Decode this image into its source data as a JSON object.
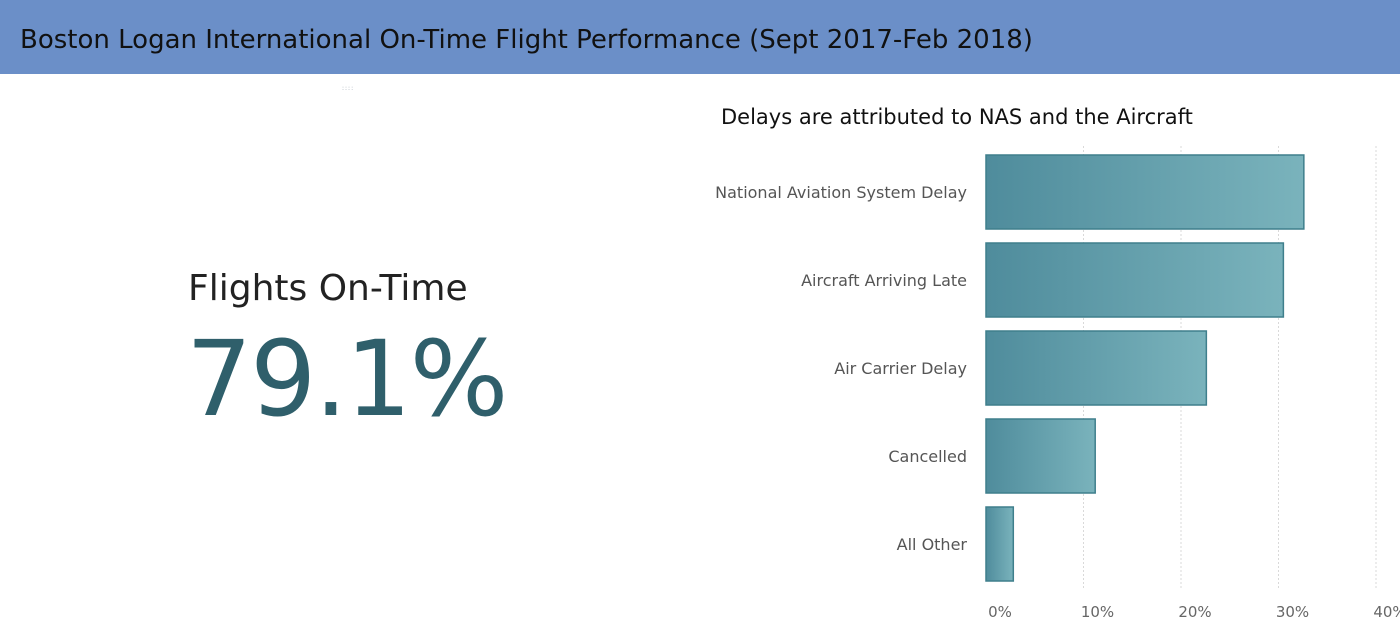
{
  "header": {
    "title": "Boston Logan International On-Time Flight Performance (Sept 2017-Feb 2018)"
  },
  "kpi": {
    "label": "Flights On-Time",
    "value": "79.1%"
  },
  "colors": {
    "header_bg": "#6b8fc8",
    "bar_dark": "#4f8c9c",
    "bar_light": "#7ab3bc",
    "bar_stroke": "#3f7f8c",
    "kpi_value": "#2f5f6b"
  },
  "chart_data": {
    "type": "bar",
    "orientation": "horizontal",
    "title": "Delays are attributed to NAS and the Aircraft",
    "categories": [
      "National Aviation System Delay",
      "Aircraft Arriving Late",
      "Air Carrier Delay",
      "Cancelled",
      "All Other"
    ],
    "values": [
      32.6,
      30.5,
      22.6,
      11.2,
      2.8
    ],
    "xlim": [
      0,
      40
    ],
    "x_ticks": [
      "0%",
      "10%",
      "20%",
      "30%",
      "40%"
    ],
    "x_tick_values": [
      0,
      10,
      20,
      30,
      40
    ],
    "grid": true,
    "xlabel": "",
    "ylabel": ""
  }
}
